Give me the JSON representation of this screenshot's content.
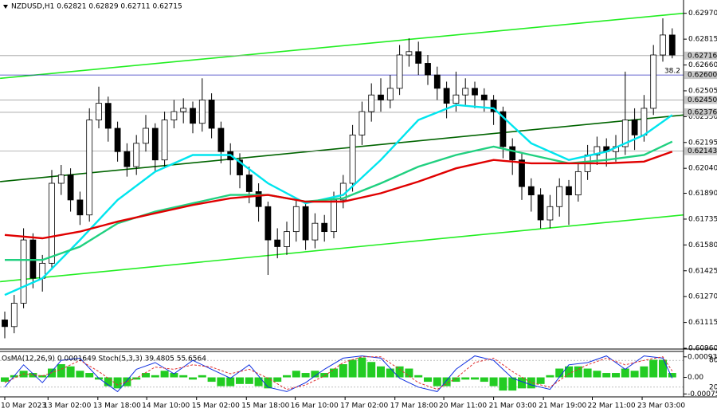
{
  "chart_data": {
    "type": "candlestick",
    "title": "NZDUSD,H1 0.62821 0.62829 0.62711 0.62715",
    "bull_color": "#ffffff",
    "bear_color": "#000000",
    "open": [
      0.6113,
      0.6109,
      0.6123,
      0.6161,
      0.6138,
      0.6147,
      0.6195,
      0.62,
      0.6185,
      0.6176,
      0.6233,
      0.6243,
      0.6228,
      0.6214,
      0.6205,
      0.6219,
      0.6228,
      0.6209,
      0.6233,
      0.6238,
      0.624,
      0.6231,
      0.6245,
      0.6228,
      0.6214,
      0.6209,
      0.62,
      0.619,
      0.6181,
      0.6161,
      0.6157,
      0.6166,
      0.6181,
      0.6161,
      0.6171,
      0.6166,
      0.6185,
      0.6195,
      0.6224,
      0.6238,
      0.6248,
      0.6245,
      0.6252,
      0.6272,
      0.6274,
      0.6267,
      0.626,
      0.6252,
      0.6243,
      0.6248,
      0.6252,
      0.6248,
      0.6245,
      0.6238,
      0.6217,
      0.6209,
      0.6193,
      0.6188,
      0.6173,
      0.6181,
      0.6193,
      0.6188,
      0.6202,
      0.6212,
      0.6217,
      0.6214,
      0.6217,
      0.6233,
      0.6224,
      0.624,
      0.6272,
      0.6284
    ],
    "high": [
      0.6118,
      0.6128,
      0.6168,
      0.6165,
      0.6152,
      0.6203,
      0.6206,
      0.6204,
      0.619,
      0.624,
      0.6253,
      0.6247,
      0.6232,
      0.6219,
      0.6224,
      0.6236,
      0.6231,
      0.6238,
      0.6245,
      0.6246,
      0.6244,
      0.6258,
      0.6249,
      0.6232,
      0.6219,
      0.6213,
      0.6205,
      0.6195,
      0.6184,
      0.6168,
      0.6172,
      0.6186,
      0.6184,
      0.6177,
      0.6176,
      0.619,
      0.62,
      0.623,
      0.6244,
      0.6255,
      0.6258,
      0.626,
      0.6278,
      0.6282,
      0.628,
      0.6272,
      0.6265,
      0.6256,
      0.6262,
      0.6258,
      0.6256,
      0.6252,
      0.6248,
      0.6241,
      0.6222,
      0.6213,
      0.6198,
      0.6192,
      0.6188,
      0.6198,
      0.6197,
      0.6207,
      0.6218,
      0.6223,
      0.6222,
      0.6224,
      0.6262,
      0.624,
      0.6248,
      0.6278,
      0.6294,
      0.6288
    ],
    "low": [
      0.6102,
      0.6105,
      0.612,
      0.6132,
      0.613,
      0.6143,
      0.6188,
      0.6178,
      0.617,
      0.6172,
      0.6228,
      0.622,
      0.6208,
      0.6199,
      0.62,
      0.6214,
      0.6202,
      0.6205,
      0.6228,
      0.6231,
      0.6225,
      0.6226,
      0.6222,
      0.6207,
      0.62,
      0.6192,
      0.6183,
      0.6172,
      0.614,
      0.615,
      0.6152,
      0.616,
      0.6155,
      0.6156,
      0.616,
      0.6162,
      0.618,
      0.619,
      0.6218,
      0.6232,
      0.6238,
      0.624,
      0.6248,
      0.6265,
      0.626,
      0.6254,
      0.6245,
      0.6234,
      0.6238,
      0.6242,
      0.624,
      0.6238,
      0.623,
      0.621,
      0.62,
      0.6185,
      0.6178,
      0.6168,
      0.6168,
      0.6175,
      0.617,
      0.6184,
      0.6197,
      0.6206,
      0.6205,
      0.6208,
      0.6212,
      0.6215,
      0.622,
      0.6236,
      0.6268,
      0.627
    ],
    "close": [
      0.6109,
      0.6123,
      0.6161,
      0.6138,
      0.6147,
      0.6195,
      0.62,
      0.6185,
      0.6176,
      0.6233,
      0.6243,
      0.6228,
      0.6214,
      0.6205,
      0.6219,
      0.6228,
      0.6209,
      0.6233,
      0.6238,
      0.624,
      0.6231,
      0.6245,
      0.6228,
      0.6214,
      0.6209,
      0.62,
      0.619,
      0.6181,
      0.6161,
      0.6157,
      0.6166,
      0.6181,
      0.6161,
      0.6171,
      0.6166,
      0.6185,
      0.6195,
      0.6224,
      0.6238,
      0.6248,
      0.6245,
      0.6252,
      0.6272,
      0.6274,
      0.6267,
      0.626,
      0.6252,
      0.6243,
      0.6248,
      0.6252,
      0.6248,
      0.6245,
      0.6238,
      0.6217,
      0.6209,
      0.6193,
      0.6188,
      0.6173,
      0.6181,
      0.6193,
      0.6188,
      0.6202,
      0.6212,
      0.6217,
      0.6214,
      0.6217,
      0.6233,
      0.6224,
      0.624,
      0.6272,
      0.6284,
      0.6272
    ],
    "ylim": [
      0.6096,
      0.6305
    ],
    "yticks": [
      {
        "value": 0.6297,
        "label": "0.62970"
      },
      {
        "value": 0.62815,
        "label": "0.62815"
      },
      {
        "value": 0.6266,
        "label": "0.62660"
      },
      {
        "value": 0.62505,
        "label": "0.62505"
      },
      {
        "value": 0.6235,
        "label": "0.62350"
      },
      {
        "value": 0.62195,
        "label": "0.62195"
      },
      {
        "value": 0.6204,
        "label": "0.62040"
      },
      {
        "value": 0.6189,
        "label": "0.61890"
      },
      {
        "value": 0.61735,
        "label": "0.61735"
      },
      {
        "value": 0.6158,
        "label": "0.61580"
      },
      {
        "value": 0.61425,
        "label": "0.61425"
      },
      {
        "value": 0.6127,
        "label": "0.61270"
      },
      {
        "value": 0.61115,
        "label": "0.61115"
      },
      {
        "value": 0.6096,
        "label": "0.60960"
      }
    ],
    "xticks": [
      {
        "value": 0,
        "label": "10 Mar 2023"
      },
      {
        "value": 4.6,
        "label": "13 Mar 02:00"
      },
      {
        "value": 9.9,
        "label": "13 Mar 18:00"
      },
      {
        "value": 15.1,
        "label": "14 Mar 10:00"
      },
      {
        "value": 20.4,
        "label": "15 Mar 02:00"
      },
      {
        "value": 25.7,
        "label": "15 Mar 18:00"
      },
      {
        "value": 30.9,
        "label": "16 Mar 10:00"
      },
      {
        "value": 36.2,
        "label": "17 Mar 02:00"
      },
      {
        "value": 41.5,
        "label": "17 Mar 18:00"
      },
      {
        "value": 46.7,
        "label": "20 Mar 11:00"
      },
      {
        "value": 52.0,
        "label": "21 Mar 03:00"
      },
      {
        "value": 57.3,
        "label": "21 Mar 19:00"
      },
      {
        "value": 62.5,
        "label": "22 Mar 11:00"
      },
      {
        "value": 67.8,
        "label": "23 Mar 03:00"
      }
    ],
    "series": [
      {
        "color": "#00e5ee",
        "x": [
          0,
          4,
          8,
          12,
          16,
          20,
          24,
          28,
          32,
          36,
          40,
          44,
          48,
          52,
          56,
          60,
          64,
          68,
          71
        ],
        "values": [
          0.6128,
          0.6138,
          0.6161,
          0.6185,
          0.6202,
          0.6212,
          0.6212,
          0.6195,
          0.6183,
          0.6188,
          0.6209,
          0.6233,
          0.6242,
          0.624,
          0.6219,
          0.6209,
          0.6214,
          0.6224,
          0.6236
        ]
      },
      {
        "color": "#20d080",
        "x": [
          0,
          4,
          8,
          12,
          16,
          20,
          24,
          28,
          32,
          36,
          40,
          44,
          48,
          52,
          56,
          60,
          64,
          68,
          71
        ],
        "values": [
          0.6149,
          0.6149,
          0.6157,
          0.6171,
          0.6178,
          0.6183,
          0.6188,
          0.6188,
          0.6184,
          0.6186,
          0.6195,
          0.6205,
          0.6212,
          0.6217,
          0.6212,
          0.6207,
          0.6209,
          0.6212,
          0.622
        ]
      },
      {
        "color": "#e00000",
        "x": [
          0,
          4,
          8,
          12,
          16,
          20,
          24,
          28,
          32,
          36,
          40,
          44,
          48,
          52,
          56,
          60,
          64,
          68,
          71
        ],
        "values": [
          0.6164,
          0.6162,
          0.6166,
          0.6172,
          0.6177,
          0.6182,
          0.6186,
          0.6188,
          0.6184,
          0.6184,
          0.6189,
          0.6196,
          0.6204,
          0.6209,
          0.6207,
          0.6207,
          0.6207,
          0.6208,
          0.6214
        ]
      }
    ],
    "trendlines": [
      {
        "color": "#22ee22",
        "x": [
          -0.5,
          72.2
        ],
        "values": [
          0.6258,
          0.6297
        ]
      },
      {
        "color": "#006400",
        "x": [
          -0.5,
          72.2
        ],
        "values": [
          0.6196,
          0.6236
        ]
      },
      {
        "color": "#22ee22",
        "x": [
          -0.5,
          72.2
        ],
        "values": [
          0.6136,
          0.6176
        ]
      }
    ],
    "levels": [
      {
        "value": 0.62716,
        "label": "0.62716",
        "color": "#a0a0a0"
      },
      {
        "value": 0.626,
        "label": "0.62600",
        "color": "#3030c0",
        "note": "38.2"
      },
      {
        "value": 0.6245,
        "label": "0.62450",
        "color": "#a0a0a0"
      },
      {
        "value": 0.62376,
        "label": "0.62376",
        "color": "#a0a0a0"
      },
      {
        "value": 0.62143,
        "label": "0.62143",
        "color": "#a0a0a0"
      }
    ],
    "indicator": {
      "title": "OsMA(12,26,9) 0.0001649 Stoch(5,3,3) 39.4805 55.6564",
      "color": "#22cc22",
      "values": [
        -0.0002,
        0.0001,
        0.0003,
        0.0002,
        0.0001,
        0.0004,
        0.0006,
        0.0005,
        0.0003,
        0.0002,
        -0.0001,
        -0.0004,
        -0.0005,
        -0.0004,
        -0.0001,
        0.0002,
        0.0001,
        0.0003,
        0.0002,
        0.0001,
        -0.0001,
        0.0001,
        -0.0002,
        -0.0004,
        -0.0004,
        -0.0003,
        -0.0003,
        -0.0004,
        -0.0005,
        -0.0002,
        0.0001,
        0.0003,
        0.0002,
        0.0003,
        0.0002,
        0.0004,
        0.0006,
        0.0008,
        0.0009,
        0.0007,
        0.0005,
        0.0004,
        0.0005,
        0.0004,
        0.0001,
        -0.0002,
        -0.0004,
        -0.0004,
        -0.0002,
        -0.0001,
        -0.0001,
        -0.0002,
        -0.0004,
        -0.0006,
        -0.0006,
        -0.0005,
        -0.0005,
        -0.0003,
        0.0001,
        0.0004,
        0.0005,
        0.0005,
        0.0004,
        0.0003,
        0.0002,
        0.0002,
        0.0004,
        0.0003,
        0.0005,
        0.0008,
        0.0008,
        0.0002
      ],
      "y2lim": [
        -0.00085,
        0.00118
      ],
      "y2ticks": [
        {
          "value": 0.0009347,
          "label": "0.0009347"
        },
        {
          "value": 0,
          "label": "0.00"
        },
        {
          "value": -0.000754,
          "label": "-0.000754"
        }
      ],
      "stoch_lim": [
        0,
        100
      ],
      "stoch_levels": [
        80,
        20
      ],
      "stoch_x": [
        0,
        2,
        4,
        6,
        8,
        10,
        12,
        14,
        16,
        18,
        20,
        22,
        24,
        26,
        28,
        30,
        32,
        34,
        36,
        38,
        40,
        42,
        44,
        46,
        48,
        50,
        52,
        54,
        56,
        58,
        60,
        62,
        64,
        66,
        68,
        70,
        71
      ],
      "stoch_main": {
        "color": "#1030e0",
        "values": [
          20,
          70,
          30,
          80,
          85,
          40,
          10,
          60,
          75,
          50,
          80,
          60,
          40,
          70,
          20,
          10,
          30,
          60,
          85,
          90,
          85,
          40,
          20,
          10,
          60,
          90,
          80,
          40,
          25,
          15,
          70,
          75,
          90,
          60,
          90,
          85,
          40
        ]
      },
      "stoch_signal": {
        "color": "#e03030",
        "values": [
          30,
          50,
          45,
          60,
          80,
          55,
          25,
          40,
          65,
          60,
          70,
          65,
          50,
          60,
          40,
          15,
          25,
          45,
          75,
          88,
          88,
          60,
          30,
          15,
          40,
          75,
          85,
          55,
          30,
          20,
          50,
          70,
          85,
          70,
          80,
          88,
          56
        ]
      }
    }
  }
}
